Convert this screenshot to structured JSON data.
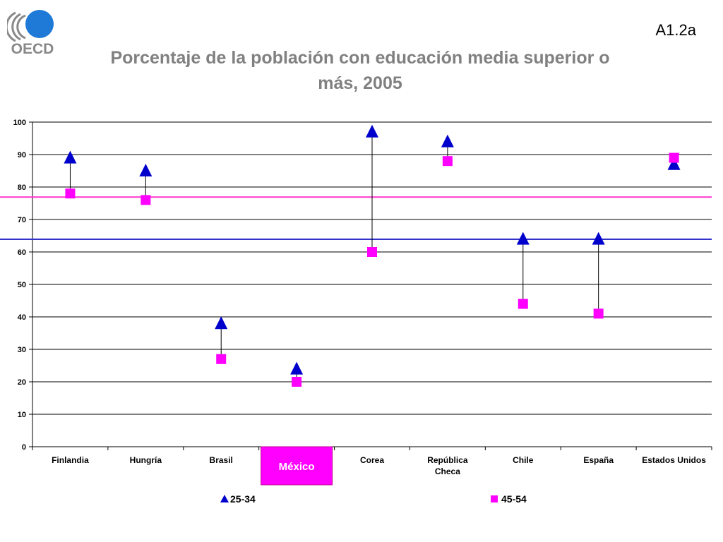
{
  "header": {
    "logo_text": "OECD",
    "slide_code": "A1.2a",
    "title_line1": "Porcentaje de la población con educación media superior o",
    "title_line2": "más, 2005"
  },
  "colors": {
    "series_25_34": "#0000cc",
    "series_45_54": "#ff00ff",
    "ref_line_45_54": "#ff33cc",
    "ref_line_25_34": "#3333cc",
    "highlight_fill": "#ff00ff",
    "logo_blue": "#1e7ad6",
    "logo_gray": "#888888"
  },
  "chart_data": {
    "type": "scatter",
    "title": "Porcentaje de la población con educación media superior o más, 2005",
    "ylim": [
      0,
      100
    ],
    "yticks": [
      0,
      10,
      20,
      30,
      40,
      50,
      60,
      70,
      80,
      90,
      100
    ],
    "grid": true,
    "categories": [
      [
        "Finlandia"
      ],
      [
        "Hungría"
      ],
      [
        "Brasil"
      ],
      [
        "México"
      ],
      [
        "Corea"
      ],
      [
        "República",
        "Checa"
      ],
      [
        "Chile"
      ],
      [
        "España"
      ],
      [
        "Estados Unidos"
      ]
    ],
    "highlight_category": 3,
    "series": [
      {
        "name": "25-34",
        "marker": "triangle",
        "values": [
          89,
          85,
          38,
          24,
          97,
          94,
          64,
          64,
          87
        ]
      },
      {
        "name": "45-54",
        "marker": "square",
        "values": [
          78,
          76,
          27,
          20,
          60,
          88,
          44,
          41,
          89
        ]
      }
    ],
    "reference_lines": [
      {
        "series": "45-54",
        "value": 76.9
      },
      {
        "series": "25-34",
        "value": 63.9
      }
    ],
    "legend_position": "bottom"
  }
}
